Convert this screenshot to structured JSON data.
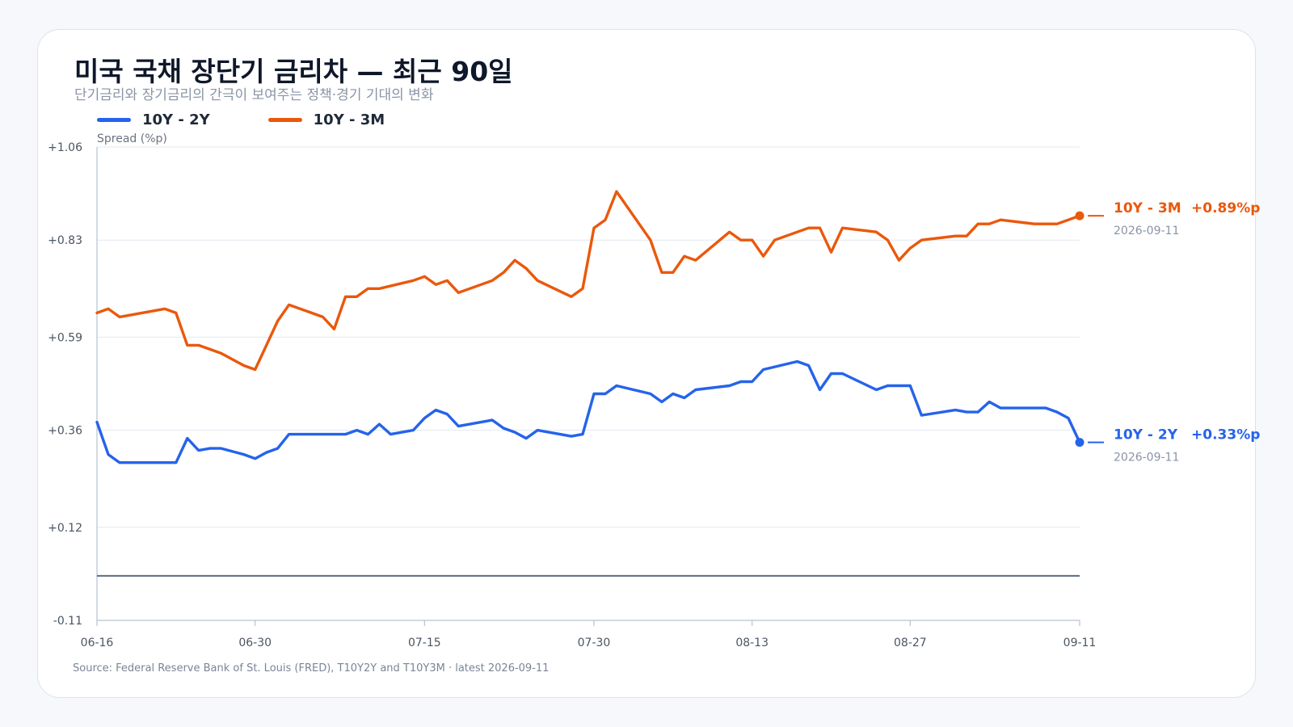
{
  "chart_data": {
    "type": "line",
    "title": "미국 국채 장단기 금리차 — 최근 90일",
    "subtitle": "단기금리와 장기금리의 간극이 보여주는 정책·경기 기대의 변화",
    "ylabel": "Spread (%p)",
    "ylim": [
      -0.11,
      1.06
    ],
    "yticks": [
      "+1.06",
      "+0.83",
      "+0.59",
      "+0.36",
      "+0.12",
      "-0.11"
    ],
    "ytick_values": [
      1.06,
      0.83,
      0.59,
      0.36,
      0.12,
      -0.11
    ],
    "x_range": [
      "2026-06-16",
      "2026-09-11"
    ],
    "xticks": [
      {
        "date": "2026-06-16",
        "label": "06-16"
      },
      {
        "date": "2026-06-30",
        "label": "06-30"
      },
      {
        "date": "2026-07-15",
        "label": "07-15"
      },
      {
        "date": "2026-07-30",
        "label": "07-30"
      },
      {
        "date": "2026-08-13",
        "label": "08-13"
      },
      {
        "date": "2026-08-27",
        "label": "08-27"
      },
      {
        "date": "2026-09-11",
        "label": "09-11"
      }
    ],
    "reference_line": 0,
    "grid": true,
    "legend_position": "top-left",
    "series": [
      {
        "name": "10Y - 2Y",
        "color": "#2563eb",
        "end_value_label": "+0.33%p",
        "end_date": "2026-09-11",
        "points": [
          [
            "2026-06-16",
            0.38
          ],
          [
            "2026-06-17",
            0.3
          ],
          [
            "2026-06-18",
            0.28
          ],
          [
            "2026-06-22",
            0.28
          ],
          [
            "2026-06-23",
            0.28
          ],
          [
            "2026-06-24",
            0.34
          ],
          [
            "2026-06-25",
            0.31
          ],
          [
            "2026-06-26",
            0.315
          ],
          [
            "2026-06-27",
            0.315
          ],
          [
            "2026-06-29",
            0.3
          ],
          [
            "2026-06-30",
            0.29
          ],
          [
            "2026-07-01",
            0.305
          ],
          [
            "2026-07-02",
            0.315
          ],
          [
            "2026-07-03",
            0.35
          ],
          [
            "2026-07-06",
            0.35
          ],
          [
            "2026-07-07",
            0.35
          ],
          [
            "2026-07-08",
            0.35
          ],
          [
            "2026-07-09",
            0.36
          ],
          [
            "2026-07-10",
            0.35
          ],
          [
            "2026-07-11",
            0.375
          ],
          [
            "2026-07-12",
            0.35
          ],
          [
            "2026-07-13",
            0.355
          ],
          [
            "2026-07-14",
            0.36
          ],
          [
            "2026-07-15",
            0.39
          ],
          [
            "2026-07-16",
            0.41
          ],
          [
            "2026-07-17",
            0.4
          ],
          [
            "2026-07-18",
            0.37
          ],
          [
            "2026-07-21",
            0.385
          ],
          [
            "2026-07-22",
            0.365
          ],
          [
            "2026-07-23",
            0.355
          ],
          [
            "2026-07-24",
            0.34
          ],
          [
            "2026-07-25",
            0.36
          ],
          [
            "2026-07-28",
            0.345
          ],
          [
            "2026-07-29",
            0.35
          ],
          [
            "2026-07-30",
            0.45
          ],
          [
            "2026-07-31",
            0.45
          ],
          [
            "2026-08-01",
            0.47
          ],
          [
            "2026-08-04",
            0.45
          ],
          [
            "2026-08-05",
            0.43
          ],
          [
            "2026-08-06",
            0.45
          ],
          [
            "2026-08-07",
            0.44
          ],
          [
            "2026-08-08",
            0.46
          ],
          [
            "2026-08-11",
            0.47
          ],
          [
            "2026-08-12",
            0.48
          ],
          [
            "2026-08-13",
            0.48
          ],
          [
            "2026-08-14",
            0.51
          ],
          [
            "2026-08-17",
            0.53
          ],
          [
            "2026-08-18",
            0.52
          ],
          [
            "2026-08-19",
            0.46
          ],
          [
            "2026-08-20",
            0.5
          ],
          [
            "2026-08-21",
            0.5
          ],
          [
            "2026-08-24",
            0.46
          ],
          [
            "2026-08-25",
            0.47
          ],
          [
            "2026-08-26",
            0.47
          ],
          [
            "2026-08-27",
            0.47
          ],
          [
            "2026-08-28",
            0.397
          ],
          [
            "2026-08-31",
            0.41
          ],
          [
            "2026-09-01",
            0.405
          ],
          [
            "2026-09-02",
            0.405
          ],
          [
            "2026-09-03",
            0.43
          ],
          [
            "2026-09-04",
            0.415
          ],
          [
            "2026-09-07",
            0.415
          ],
          [
            "2026-09-08",
            0.415
          ],
          [
            "2026-09-09",
            0.405
          ],
          [
            "2026-09-10",
            0.39
          ],
          [
            "2026-09-11",
            0.33
          ]
        ]
      },
      {
        "name": "10Y - 3M",
        "color": "#ea580c",
        "end_value_label": "+0.89%p",
        "end_date": "2026-09-11",
        "points": [
          [
            "2026-06-16",
            0.65
          ],
          [
            "2026-06-17",
            0.66
          ],
          [
            "2026-06-18",
            0.64
          ],
          [
            "2026-06-22",
            0.66
          ],
          [
            "2026-06-23",
            0.65
          ],
          [
            "2026-06-24",
            0.57
          ],
          [
            "2026-06-25",
            0.57
          ],
          [
            "2026-06-26",
            0.56
          ],
          [
            "2026-06-27",
            0.55
          ],
          [
            "2026-06-29",
            0.52
          ],
          [
            "2026-06-30",
            0.51
          ],
          [
            "2026-07-01",
            0.57
          ],
          [
            "2026-07-02",
            0.63
          ],
          [
            "2026-07-03",
            0.67
          ],
          [
            "2026-07-06",
            0.64
          ],
          [
            "2026-07-07",
            0.61
          ],
          [
            "2026-07-08",
            0.69
          ],
          [
            "2026-07-09",
            0.69
          ],
          [
            "2026-07-10",
            0.71
          ],
          [
            "2026-07-11",
            0.71
          ],
          [
            "2026-07-14",
            0.73
          ],
          [
            "2026-07-15",
            0.74
          ],
          [
            "2026-07-16",
            0.72
          ],
          [
            "2026-07-17",
            0.73
          ],
          [
            "2026-07-18",
            0.7
          ],
          [
            "2026-07-21",
            0.73
          ],
          [
            "2026-07-22",
            0.75
          ],
          [
            "2026-07-23",
            0.78
          ],
          [
            "2026-07-24",
            0.76
          ],
          [
            "2026-07-25",
            0.73
          ],
          [
            "2026-07-28",
            0.69
          ],
          [
            "2026-07-29",
            0.71
          ],
          [
            "2026-07-30",
            0.86
          ],
          [
            "2026-07-31",
            0.88
          ],
          [
            "2026-08-01",
            0.95
          ],
          [
            "2026-08-04",
            0.83
          ],
          [
            "2026-08-05",
            0.75
          ],
          [
            "2026-08-06",
            0.75
          ],
          [
            "2026-08-07",
            0.79
          ],
          [
            "2026-08-08",
            0.78
          ],
          [
            "2026-08-11",
            0.85
          ],
          [
            "2026-08-12",
            0.83
          ],
          [
            "2026-08-13",
            0.83
          ],
          [
            "2026-08-14",
            0.79
          ],
          [
            "2026-08-15",
            0.83
          ],
          [
            "2026-08-18",
            0.86
          ],
          [
            "2026-08-19",
            0.86
          ],
          [
            "2026-08-20",
            0.8
          ],
          [
            "2026-08-21",
            0.86
          ],
          [
            "2026-08-24",
            0.85
          ],
          [
            "2026-08-25",
            0.83
          ],
          [
            "2026-08-26",
            0.78
          ],
          [
            "2026-08-27",
            0.81
          ],
          [
            "2026-08-28",
            0.83
          ],
          [
            "2026-08-31",
            0.84
          ],
          [
            "2026-09-01",
            0.84
          ],
          [
            "2026-09-02",
            0.87
          ],
          [
            "2026-09-03",
            0.87
          ],
          [
            "2026-09-04",
            0.88
          ],
          [
            "2026-09-07",
            0.87
          ],
          [
            "2026-09-08",
            0.87
          ],
          [
            "2026-09-09",
            0.87
          ],
          [
            "2026-09-10",
            0.88
          ],
          [
            "2026-09-11",
            0.89
          ]
        ]
      }
    ]
  },
  "source": "Source: Federal Reserve Bank of St. Louis (FRED), T10Y2Y and T10Y3M · latest 2026-09-11"
}
